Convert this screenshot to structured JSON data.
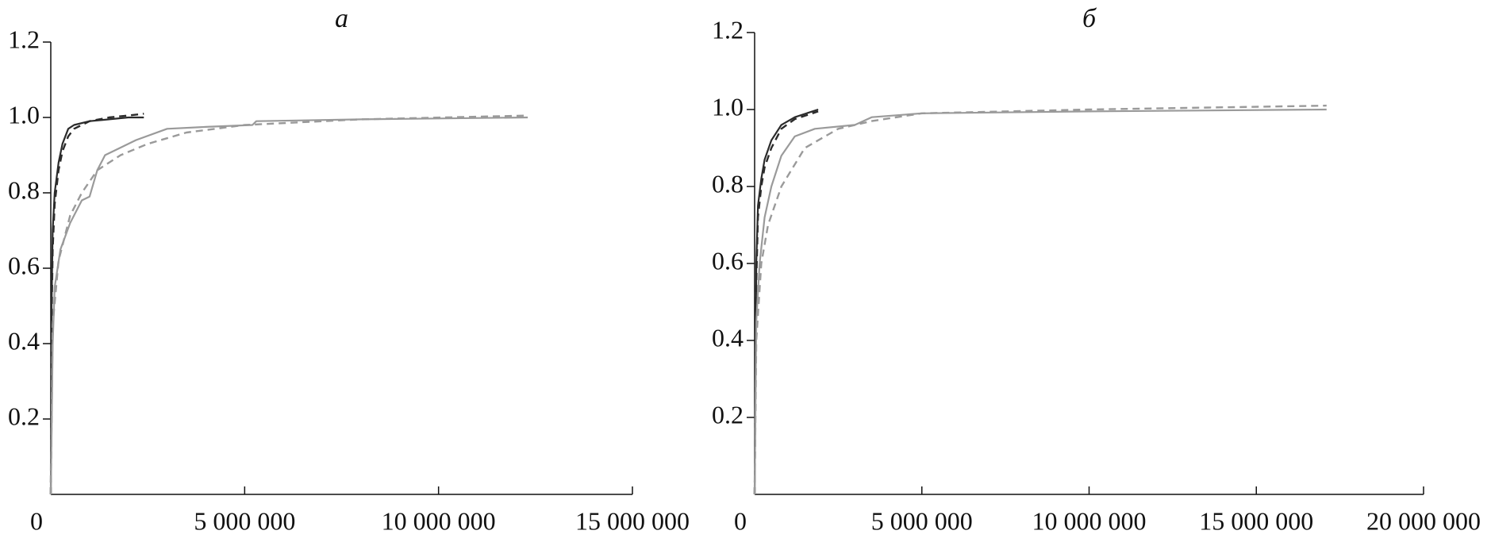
{
  "chart_data": [
    {
      "type": "line",
      "title": "а",
      "xlim": [
        0,
        15000000
      ],
      "xticks": [
        0,
        {
          "value": 5000000,
          "label": "5 000 000"
        },
        {
          "value": 10000000,
          "label": "10 000 000"
        },
        {
          "value": 15000000,
          "label": "15 000 000"
        }
      ],
      "ylim": [
        0,
        1.2
      ],
      "yticks": [
        0.2,
        0.4,
        0.6,
        0.8,
        {
          "value": 1,
          "label": "1.0"
        },
        1.2
      ],
      "series": [
        {
          "color": "#2b2b2b",
          "dashed": false,
          "x": [
            0,
            20000,
            50000,
            100000,
            200000,
            300000,
            450000,
            600000,
            1000000,
            1500000,
            2000000,
            2400000
          ],
          "values": [
            0,
            0.5,
            0.7,
            0.8,
            0.88,
            0.93,
            0.97,
            0.98,
            0.99,
            0.995,
            1.0,
            1.0
          ]
        },
        {
          "color": "#2b2b2b",
          "dashed": true,
          "x": [
            0,
            20000,
            50000,
            100000,
            200000,
            300000,
            450000,
            600000,
            1000000,
            1500000,
            2000000,
            2400000
          ],
          "values": [
            0,
            0.45,
            0.65,
            0.77,
            0.86,
            0.91,
            0.95,
            0.97,
            0.99,
            1.0,
            1.005,
            1.01
          ]
        },
        {
          "color": "#9a9a9a",
          "dashed": false,
          "x": [
            0,
            50000,
            100000,
            250000,
            500000,
            800000,
            1000000,
            1200000,
            1400000,
            1800000,
            2200000,
            3000000,
            4000000,
            5200000,
            5300000,
            8000000,
            12300000
          ],
          "values": [
            0,
            0.4,
            0.55,
            0.65,
            0.72,
            0.78,
            0.79,
            0.86,
            0.9,
            0.92,
            0.94,
            0.97,
            0.975,
            0.98,
            0.99,
            0.995,
            1.0
          ]
        },
        {
          "color": "#9a9a9a",
          "dashed": true,
          "x": [
            0,
            50000,
            200000,
            500000,
            800000,
            1200000,
            1800000,
            2500000,
            3500000,
            5000000,
            8000000,
            12300000
          ],
          "values": [
            0,
            0.45,
            0.62,
            0.74,
            0.8,
            0.86,
            0.9,
            0.93,
            0.96,
            0.98,
            0.995,
            1.005
          ]
        }
      ]
    },
    {
      "type": "line",
      "title": "б",
      "xlim": [
        0,
        20000000
      ],
      "xticks": [
        0,
        {
          "value": 5000000,
          "label": "5 000 000"
        },
        {
          "value": 10000000,
          "label": "10 000 000"
        },
        {
          "value": 15000000,
          "label": "15 000 000"
        },
        {
          "value": 20000000,
          "label": "20 000 000"
        }
      ],
      "ylim": [
        0,
        1.2
      ],
      "yticks": [
        0.2,
        0.4,
        0.6,
        0.8,
        {
          "value": 1,
          "label": "1.0"
        },
        1.2
      ],
      "series": [
        {
          "color": "#2b2b2b",
          "dashed": false,
          "x": [
            0,
            50000,
            100000,
            200000,
            300000,
            500000,
            800000,
            1200000,
            1900000
          ],
          "values": [
            0,
            0.6,
            0.75,
            0.82,
            0.87,
            0.92,
            0.96,
            0.98,
            1.0
          ]
        },
        {
          "color": "#2b2b2b",
          "dashed": true,
          "x": [
            0,
            50000,
            100000,
            200000,
            300000,
            500000,
            800000,
            1200000,
            1900000
          ],
          "values": [
            0,
            0.55,
            0.72,
            0.8,
            0.85,
            0.9,
            0.95,
            0.975,
            0.995
          ]
        },
        {
          "color": "#9a9a9a",
          "dashed": false,
          "x": [
            0,
            50000,
            150000,
            300000,
            500000,
            800000,
            1200000,
            1800000,
            3000000,
            3500000,
            5000000,
            10000000,
            17100000
          ],
          "values": [
            0,
            0.45,
            0.6,
            0.72,
            0.8,
            0.88,
            0.93,
            0.95,
            0.96,
            0.98,
            0.99,
            0.995,
            1.0
          ]
        },
        {
          "color": "#9a9a9a",
          "dashed": true,
          "x": [
            0,
            50000,
            200000,
            400000,
            800000,
            1500000,
            2500000,
            3500000,
            5000000,
            10000000,
            17100000
          ],
          "values": [
            0,
            0.4,
            0.6,
            0.7,
            0.8,
            0.9,
            0.95,
            0.97,
            0.99,
            1.0,
            1.01
          ]
        }
      ]
    }
  ]
}
